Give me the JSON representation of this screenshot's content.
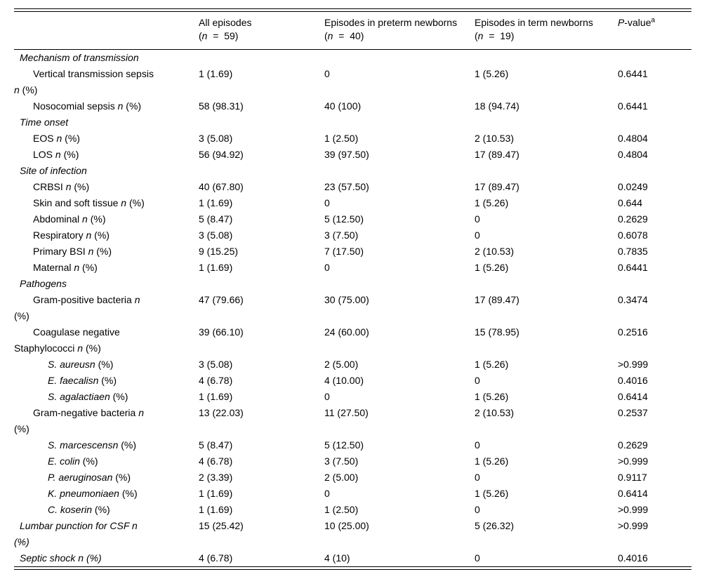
{
  "table": {
    "header": {
      "cells": [
        {
          "name": "col-row-label",
          "lines": []
        },
        {
          "name": "col-all-episodes",
          "lines": [
            [
              {
                "t": "All episodes"
              }
            ],
            [
              {
                "t": "("
              },
              {
                "t": "n",
                "i": true
              },
              {
                "t": "  =  59)"
              }
            ]
          ]
        },
        {
          "name": "col-preterm-episodes",
          "lines": [
            [
              {
                "t": "Episodes in preterm newborns"
              }
            ],
            [
              {
                "t": "("
              },
              {
                "t": "n",
                "i": true
              },
              {
                "t": "  =  40)"
              }
            ]
          ]
        },
        {
          "name": "col-term-episodes",
          "lines": [
            [
              {
                "t": "Episodes in term newborns"
              }
            ],
            [
              {
                "t": "("
              },
              {
                "t": "n",
                "i": true
              },
              {
                "t": "  =  19)"
              }
            ]
          ]
        },
        {
          "name": "col-p-value",
          "lines": [
            [
              {
                "t": "P",
                "i": true
              },
              {
                "t": "-value"
              },
              {
                "t": "a",
                "sup": true
              }
            ]
          ]
        }
      ]
    },
    "rows": [
      {
        "type": "section",
        "indent": 0,
        "label_lines": [
          [
            {
              "t": "Mechanism of transmission",
              "i": true
            }
          ]
        ],
        "values": [
          "",
          "",
          "",
          ""
        ]
      },
      {
        "type": "data",
        "indent": 1,
        "label_lines": [
          [
            {
              "t": "Vertical transmission sepsis"
            }
          ],
          [
            {
              "t": "n",
              "i": true
            },
            {
              "t": " (%)"
            }
          ]
        ],
        "values": [
          "1 (1.69)",
          "0",
          "1 (5.26)",
          "0.6441"
        ]
      },
      {
        "type": "data",
        "indent": 1,
        "label_lines": [
          [
            {
              "t": "Nosocomial sepsis "
            },
            {
              "t": "n",
              "i": true
            },
            {
              "t": " (%)"
            }
          ]
        ],
        "values": [
          "58 (98.31)",
          "40 (100)",
          "18 (94.74)",
          "0.6441"
        ]
      },
      {
        "type": "section",
        "indent": 0,
        "label_lines": [
          [
            {
              "t": "Time onset",
              "i": true
            }
          ]
        ],
        "values": [
          "",
          "",
          "",
          ""
        ]
      },
      {
        "type": "data",
        "indent": 1,
        "label_lines": [
          [
            {
              "t": "EOS "
            },
            {
              "t": "n",
              "i": true
            },
            {
              "t": " (%)"
            }
          ]
        ],
        "values": [
          "3 (5.08)",
          "1 (2.50)",
          "2 (10.53)",
          "0.4804"
        ]
      },
      {
        "type": "data",
        "indent": 1,
        "label_lines": [
          [
            {
              "t": "LOS "
            },
            {
              "t": "n",
              "i": true
            },
            {
              "t": " (%)"
            }
          ]
        ],
        "values": [
          "56 (94.92)",
          "39 (97.50)",
          "17 (89.47)",
          "0.4804"
        ]
      },
      {
        "type": "section",
        "indent": 0,
        "label_lines": [
          [
            {
              "t": "Site of infection",
              "i": true
            }
          ]
        ],
        "values": [
          "",
          "",
          "",
          ""
        ]
      },
      {
        "type": "data",
        "indent": 1,
        "label_lines": [
          [
            {
              "t": "CRBSI "
            },
            {
              "t": "n",
              "i": true
            },
            {
              "t": " (%)"
            }
          ]
        ],
        "values": [
          "40 (67.80)",
          "23 (57.50)",
          "17 (89.47)",
          "0.0249"
        ]
      },
      {
        "type": "data",
        "indent": 1,
        "label_lines": [
          [
            {
              "t": "Skin and soft tissue "
            },
            {
              "t": "n",
              "i": true
            },
            {
              "t": " (%)"
            }
          ]
        ],
        "values": [
          "1 (1.69)",
          "0",
          "1 (5.26)",
          "0.644"
        ]
      },
      {
        "type": "data",
        "indent": 1,
        "label_lines": [
          [
            {
              "t": "Abdominal "
            },
            {
              "t": "n",
              "i": true
            },
            {
              "t": " (%)"
            }
          ]
        ],
        "values": [
          "5 (8.47)",
          "5 (12.50)",
          "0",
          "0.2629"
        ]
      },
      {
        "type": "data",
        "indent": 1,
        "label_lines": [
          [
            {
              "t": "Respiratory "
            },
            {
              "t": "n",
              "i": true
            },
            {
              "t": " (%)"
            }
          ]
        ],
        "values": [
          "3 (5.08)",
          "3 (7.50)",
          "0",
          "0.6078"
        ]
      },
      {
        "type": "data",
        "indent": 1,
        "label_lines": [
          [
            {
              "t": "Primary BSI "
            },
            {
              "t": "n",
              "i": true
            },
            {
              "t": " (%)"
            }
          ]
        ],
        "values": [
          "9 (15.25)",
          "7 (17.50)",
          "2 (10.53)",
          "0.7835"
        ]
      },
      {
        "type": "data",
        "indent": 1,
        "label_lines": [
          [
            {
              "t": "Maternal "
            },
            {
              "t": "n",
              "i": true
            },
            {
              "t": " (%)"
            }
          ]
        ],
        "values": [
          "1 (1.69)",
          "0",
          "1 (5.26)",
          "0.6441"
        ]
      },
      {
        "type": "section",
        "indent": 0,
        "label_lines": [
          [
            {
              "t": "Pathogens",
              "i": true
            }
          ]
        ],
        "values": [
          "",
          "",
          "",
          ""
        ]
      },
      {
        "type": "data",
        "indent": 1,
        "label_lines": [
          [
            {
              "t": "Gram-positive bacteria "
            },
            {
              "t": "n",
              "i": true
            }
          ],
          [
            {
              "t": "(%)"
            }
          ]
        ],
        "values": [
          "47 (79.66)",
          "30 (75.00)",
          "17 (89.47)",
          "0.3474"
        ]
      },
      {
        "type": "data",
        "indent": 1,
        "label_lines": [
          [
            {
              "t": "Coagulase negative"
            }
          ],
          [
            {
              "t": "Staphylococci "
            },
            {
              "t": "n",
              "i": true
            },
            {
              "t": " (%)"
            }
          ]
        ],
        "values": [
          "39 (66.10)",
          "24 (60.00)",
          "15 (78.95)",
          "0.2516"
        ]
      },
      {
        "type": "data",
        "indent": 2,
        "label_lines": [
          [
            {
              "t": "S. aureusn",
              "i": true
            },
            {
              "t": " (%)"
            }
          ]
        ],
        "values": [
          "3 (5.08)",
          "2 (5.00)",
          "1 (5.26)",
          ">0.999"
        ]
      },
      {
        "type": "data",
        "indent": 2,
        "label_lines": [
          [
            {
              "t": "E. faecalisn",
              "i": true
            },
            {
              "t": " (%)"
            }
          ]
        ],
        "values": [
          "4 (6.78)",
          "4 (10.00)",
          "0",
          "0.4016"
        ]
      },
      {
        "type": "data",
        "indent": 2,
        "label_lines": [
          [
            {
              "t": "S. agalactiaen",
              "i": true
            },
            {
              "t": " (%)"
            }
          ]
        ],
        "values": [
          "1 (1.69)",
          "0",
          "1 (5.26)",
          "0.6414"
        ]
      },
      {
        "type": "data",
        "indent": 1,
        "label_lines": [
          [
            {
              "t": "Gram-negative bacteria "
            },
            {
              "t": "n",
              "i": true
            }
          ],
          [
            {
              "t": "(%)"
            }
          ]
        ],
        "values": [
          "13 (22.03)",
          "11 (27.50)",
          "2 (10.53)",
          "0.2537"
        ]
      },
      {
        "type": "data",
        "indent": 2,
        "label_lines": [
          [
            {
              "t": "S. marcescensn",
              "i": true
            },
            {
              "t": " (%)"
            }
          ]
        ],
        "values": [
          "5 (8.47)",
          "5 (12.50)",
          "0",
          "0.2629"
        ]
      },
      {
        "type": "data",
        "indent": 2,
        "label_lines": [
          [
            {
              "t": "E. colin",
              "i": true
            },
            {
              "t": " (%)"
            }
          ]
        ],
        "values": [
          "4 (6.78)",
          "3 (7.50)",
          "1 (5.26)",
          ">0.999"
        ]
      },
      {
        "type": "data",
        "indent": 2,
        "label_lines": [
          [
            {
              "t": "P. aeruginosan",
              "i": true
            },
            {
              "t": " (%)"
            }
          ]
        ],
        "values": [
          "2 (3.39)",
          "2 (5.00)",
          "0",
          "0.9117"
        ]
      },
      {
        "type": "data",
        "indent": 2,
        "label_lines": [
          [
            {
              "t": "K. pneumoniaen",
              "i": true
            },
            {
              "t": " (%)"
            }
          ]
        ],
        "values": [
          "1 (1.69)",
          "0",
          "1 (5.26)",
          "0.6414"
        ]
      },
      {
        "type": "data",
        "indent": 2,
        "label_lines": [
          [
            {
              "t": "C. koserin",
              "i": true
            },
            {
              "t": " (%)"
            }
          ]
        ],
        "values": [
          "1 (1.69)",
          "1 (2.50)",
          "0",
          ">0.999"
        ]
      },
      {
        "type": "data",
        "indent": 0,
        "label_lines": [
          [
            {
              "t": "Lumbar punction for CSF n",
              "i": true
            }
          ],
          [
            {
              "t": "(%)",
              "i": true
            }
          ]
        ],
        "values": [
          "15 (25.42)",
          "10 (25.00)",
          "5 (26.32)",
          ">0.999"
        ]
      },
      {
        "type": "data",
        "indent": 0,
        "label_lines": [
          [
            {
              "t": "Septic shock n (%)",
              "i": true
            }
          ]
        ],
        "values": [
          "4 (6.78)",
          "4 (10)",
          "0",
          "0.4016"
        ]
      }
    ]
  }
}
